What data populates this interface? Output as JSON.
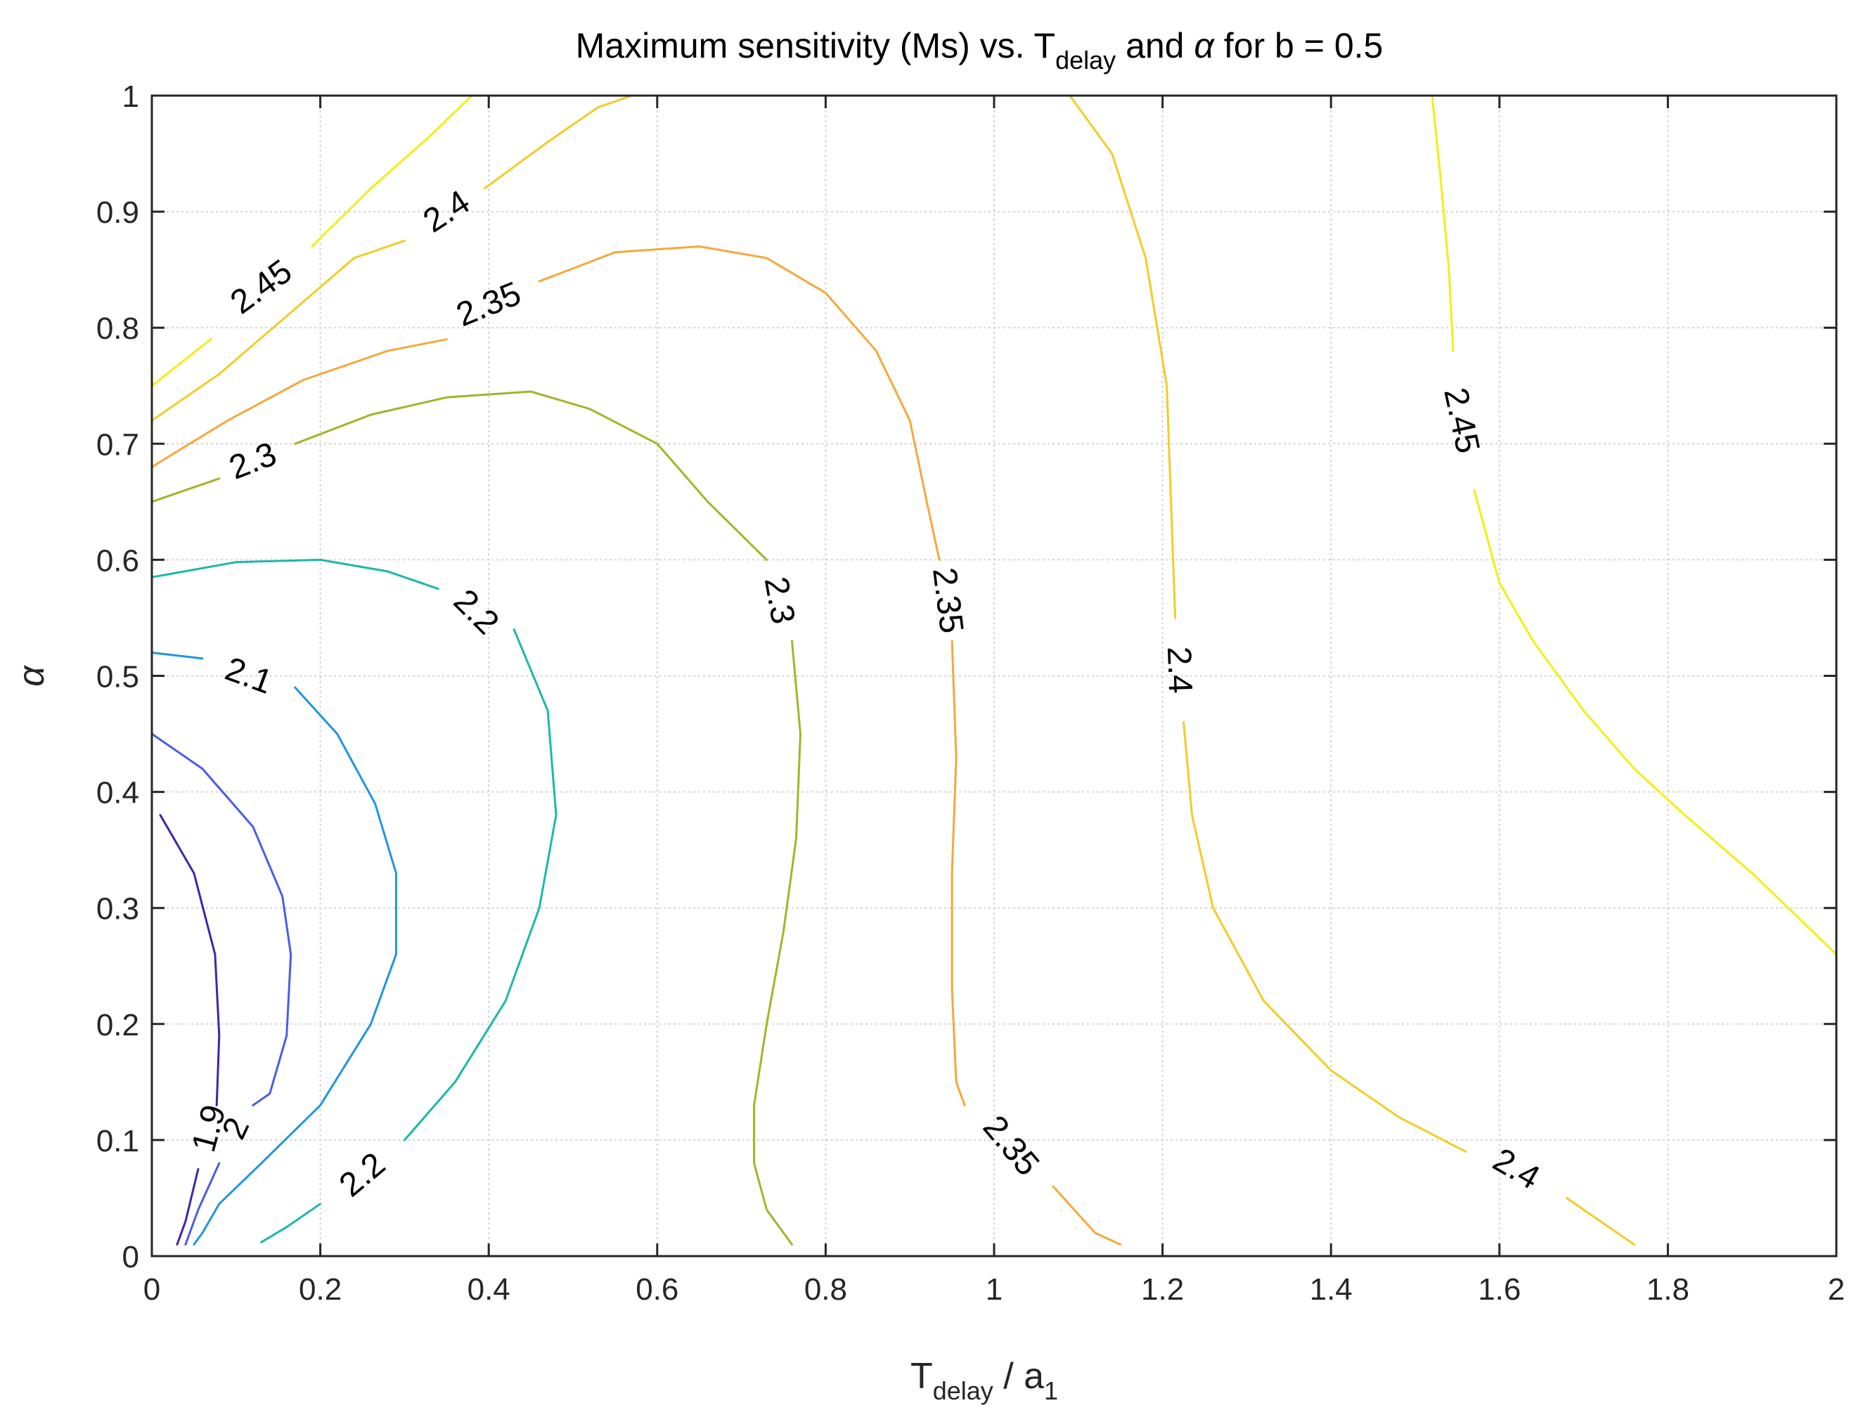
{
  "chart_data": {
    "type": "contour",
    "title": {
      "prefix": "Maximum sensitivity (Ms) vs. T",
      "sub": "delay",
      "middle": " and ",
      "symbol": "α",
      "suffix": " for b = 0.5"
    },
    "xlabel": {
      "main": "T",
      "sub1": "delay",
      "mid": " / a",
      "sub2": "1"
    },
    "ylabel": "α",
    "xlim": [
      0,
      2
    ],
    "ylim": [
      0,
      1
    ],
    "grid": true,
    "x_ticks": [
      {
        "v": 0,
        "label": "0"
      },
      {
        "v": 0.2,
        "label": "0.2"
      },
      {
        "v": 0.4,
        "label": "0.4"
      },
      {
        "v": 0.6,
        "label": "0.6"
      },
      {
        "v": 0.8,
        "label": "0.8"
      },
      {
        "v": 1,
        "label": "1"
      },
      {
        "v": 1.2,
        "label": "1.2"
      },
      {
        "v": 1.4,
        "label": "1.4"
      },
      {
        "v": 1.6,
        "label": "1.6"
      },
      {
        "v": 1.8,
        "label": "1.8"
      },
      {
        "v": 2,
        "label": "2"
      }
    ],
    "y_ticks": [
      {
        "v": 0,
        "label": "0"
      },
      {
        "v": 0.1,
        "label": "0.1"
      },
      {
        "v": 0.2,
        "label": "0.2"
      },
      {
        "v": 0.3,
        "label": "0.3"
      },
      {
        "v": 0.4,
        "label": "0.4"
      },
      {
        "v": 0.5,
        "label": "0.5"
      },
      {
        "v": 0.6,
        "label": "0.6"
      },
      {
        "v": 0.7,
        "label": "0.7"
      },
      {
        "v": 0.8,
        "label": "0.8"
      },
      {
        "v": 0.9,
        "label": "0.9"
      },
      {
        "v": 1,
        "label": "1"
      }
    ],
    "contours": [
      {
        "level": "1.9",
        "color": "#3d26a8",
        "segments": [
          [
            [
              0.01,
              0.38
            ],
            [
              0.05,
              0.33
            ],
            [
              0.075,
              0.26
            ],
            [
              0.08,
              0.19
            ],
            [
              0.077,
              0.13
            ]
          ],
          [
            [
              0.055,
              0.075
            ],
            [
              0.04,
              0.03
            ],
            [
              0.03,
              0.01
            ]
          ]
        ]
      },
      {
        "level": "2",
        "color": "#4a5ce8",
        "segments": [
          [
            [
              0.0,
              0.45
            ],
            [
              0.06,
              0.42
            ],
            [
              0.12,
              0.37
            ],
            [
              0.155,
              0.31
            ],
            [
              0.165,
              0.26
            ],
            [
              0.16,
              0.19
            ],
            [
              0.14,
              0.14
            ],
            [
              0.12,
              0.13
            ]
          ],
          [
            [
              0.08,
              0.08
            ],
            [
              0.055,
              0.04
            ],
            [
              0.04,
              0.01
            ]
          ]
        ]
      },
      {
        "level": "2.1",
        "color": "#1e96e0",
        "segments": [
          [
            [
              0.0,
              0.52
            ],
            [
              0.06,
              0.515
            ]
          ],
          [
            [
              0.17,
              0.49
            ],
            [
              0.22,
              0.45
            ],
            [
              0.265,
              0.39
            ],
            [
              0.29,
              0.33
            ],
            [
              0.29,
              0.26
            ],
            [
              0.26,
              0.2
            ],
            [
              0.2,
              0.13
            ],
            [
              0.13,
              0.08
            ],
            [
              0.08,
              0.045
            ],
            [
              0.06,
              0.02
            ],
            [
              0.05,
              0.01
            ]
          ]
        ]
      },
      {
        "level": "2.2",
        "color": "#1bb8aa",
        "segments": [
          [
            [
              0.0,
              0.585
            ],
            [
              0.1,
              0.598
            ],
            [
              0.2,
              0.6
            ],
            [
              0.28,
              0.59
            ],
            [
              0.34,
              0.575
            ]
          ],
          [
            [
              0.43,
              0.54
            ],
            [
              0.47,
              0.47
            ],
            [
              0.48,
              0.38
            ],
            [
              0.46,
              0.3
            ],
            [
              0.42,
              0.22
            ],
            [
              0.36,
              0.15
            ],
            [
              0.3,
              0.1
            ]
          ],
          [
            [
              0.2,
              0.045
            ],
            [
              0.16,
              0.025
            ],
            [
              0.13,
              0.012
            ]
          ]
        ]
      },
      {
        "level": "2.3",
        "color": "#9db826",
        "segments": [
          [
            [
              0.0,
              0.65
            ],
            [
              0.08,
              0.67
            ]
          ],
          [
            [
              0.17,
              0.7
            ],
            [
              0.26,
              0.725
            ],
            [
              0.35,
              0.74
            ],
            [
              0.45,
              0.745
            ],
            [
              0.52,
              0.73
            ],
            [
              0.6,
              0.7
            ],
            [
              0.66,
              0.65
            ],
            [
              0.73,
              0.6
            ]
          ],
          [
            [
              0.76,
              0.53
            ],
            [
              0.77,
              0.45
            ],
            [
              0.765,
              0.36
            ],
            [
              0.75,
              0.28
            ],
            [
              0.73,
              0.2
            ],
            [
              0.715,
              0.13
            ],
            [
              0.715,
              0.08
            ],
            [
              0.73,
              0.04
            ],
            [
              0.76,
              0.01
            ]
          ]
        ]
      },
      {
        "level": "2.35",
        "color": "#f5a83a",
        "segments": [
          [
            [
              0.0,
              0.68
            ],
            [
              0.09,
              0.72
            ],
            [
              0.18,
              0.755
            ],
            [
              0.28,
              0.78
            ],
            [
              0.35,
              0.79
            ]
          ],
          [
            [
              0.46,
              0.84
            ],
            [
              0.55,
              0.865
            ],
            [
              0.65,
              0.87
            ],
            [
              0.73,
              0.86
            ],
            [
              0.8,
              0.83
            ],
            [
              0.86,
              0.78
            ],
            [
              0.9,
              0.72
            ],
            [
              0.92,
              0.65
            ],
            [
              0.935,
              0.6
            ]
          ],
          [
            [
              0.95,
              0.53
            ],
            [
              0.955,
              0.43
            ],
            [
              0.95,
              0.33
            ],
            [
              0.95,
              0.23
            ],
            [
              0.955,
              0.15
            ],
            [
              0.965,
              0.13
            ]
          ],
          [
            [
              1.07,
              0.06
            ],
            [
              1.12,
              0.02
            ],
            [
              1.15,
              0.01
            ]
          ]
        ]
      },
      {
        "level": "2.4",
        "color": "#f3cc26",
        "segments": [
          [
            [
              0.0,
              0.72
            ],
            [
              0.08,
              0.76
            ],
            [
              0.16,
              0.81
            ],
            [
              0.24,
              0.86
            ],
            [
              0.3,
              0.875
            ]
          ],
          [
            [
              0.395,
              0.92
            ],
            [
              0.47,
              0.96
            ],
            [
              0.53,
              0.99
            ],
            [
              0.57,
              1.0
            ]
          ],
          [
            [
              1.09,
              1.0
            ],
            [
              1.14,
              0.95
            ],
            [
              1.18,
              0.86
            ],
            [
              1.205,
              0.75
            ],
            [
              1.21,
              0.65
            ],
            [
              1.215,
              0.55
            ]
          ],
          [
            [
              1.225,
              0.46
            ],
            [
              1.235,
              0.38
            ],
            [
              1.26,
              0.3
            ],
            [
              1.32,
              0.22
            ],
            [
              1.4,
              0.16
            ],
            [
              1.48,
              0.12
            ],
            [
              1.56,
              0.09
            ]
          ],
          [
            [
              1.68,
              0.05
            ],
            [
              1.74,
              0.02
            ],
            [
              1.76,
              0.01
            ]
          ]
        ]
      },
      {
        "level": "2.45",
        "color": "#f4ef10",
        "segments": [
          [
            [
              0.0,
              0.75
            ],
            [
              0.07,
              0.79
            ]
          ],
          [
            [
              0.19,
              0.87
            ],
            [
              0.26,
              0.92
            ],
            [
              0.33,
              0.965
            ],
            [
              0.38,
              1.0
            ]
          ],
          [
            [
              1.52,
              1.0
            ],
            [
              1.53,
              0.93
            ],
            [
              1.54,
              0.85
            ],
            [
              1.545,
              0.78
            ]
          ],
          [
            [
              1.57,
              0.66
            ],
            [
              1.6,
              0.58
            ],
            [
              1.64,
              0.53
            ],
            [
              1.7,
              0.47
            ],
            [
              1.76,
              0.42
            ],
            [
              1.82,
              0.38
            ],
            [
              1.9,
              0.33
            ],
            [
              2.0,
              0.26
            ]
          ]
        ]
      }
    ],
    "labels": [
      {
        "text": "2.45",
        "x": 0.13,
        "y": 0.835,
        "angle": -36
      },
      {
        "text": "2.4",
        "x": 0.35,
        "y": 0.9,
        "angle": -33
      },
      {
        "text": "2.35",
        "x": 0.4,
        "y": 0.82,
        "angle": -22
      },
      {
        "text": "2.3",
        "x": 0.12,
        "y": 0.685,
        "angle": -21
      },
      {
        "text": "2.2",
        "x": 0.385,
        "y": 0.555,
        "angle": 45
      },
      {
        "text": "2.1",
        "x": 0.115,
        "y": 0.5,
        "angle": 20
      },
      {
        "text": "1.9",
        "x": 0.068,
        "y": 0.11,
        "angle": -75
      },
      {
        "text": "2",
        "x": 0.1,
        "y": 0.11,
        "angle": -65
      },
      {
        "text": "2.2",
        "x": 0.25,
        "y": 0.07,
        "angle": -40
      },
      {
        "text": "2.3",
        "x": 0.745,
        "y": 0.565,
        "angle": 80
      },
      {
        "text": "2.35",
        "x": 0.945,
        "y": 0.565,
        "angle": 83
      },
      {
        "text": "2.35",
        "x": 1.02,
        "y": 0.095,
        "angle": 50
      },
      {
        "text": "2.4",
        "x": 1.22,
        "y": 0.505,
        "angle": 88
      },
      {
        "text": "2.45",
        "x": 1.555,
        "y": 0.72,
        "angle": 78
      },
      {
        "text": "2.4",
        "x": 1.62,
        "y": 0.075,
        "angle": 30
      }
    ]
  }
}
